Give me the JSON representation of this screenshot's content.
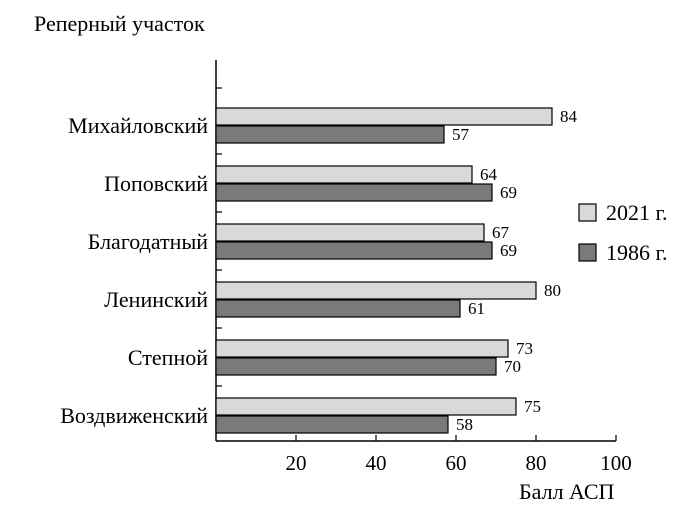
{
  "chart_data": {
    "type": "bar",
    "orientation": "horizontal",
    "title": "",
    "ylabel": "Реперный участок",
    "xlabel": "Балл АСП",
    "categories": [
      "Михайловский",
      "Поповский",
      "Благодатный",
      "Ленинский",
      "Степной",
      "Воздвиженский"
    ],
    "series": [
      {
        "name": "2021 г.",
        "values": [
          84,
          64,
          67,
          80,
          73,
          75
        ],
        "color": "#d9d9d9"
      },
      {
        "name": "1986 г.",
        "values": [
          57,
          69,
          69,
          61,
          70,
          58
        ],
        "color": "#7a7a7a"
      }
    ],
    "xlim": [
      0,
      100
    ],
    "xticks": [
      20,
      40,
      60,
      80,
      100
    ],
    "grid": false,
    "legend_position": "right",
    "data_labels": true
  }
}
